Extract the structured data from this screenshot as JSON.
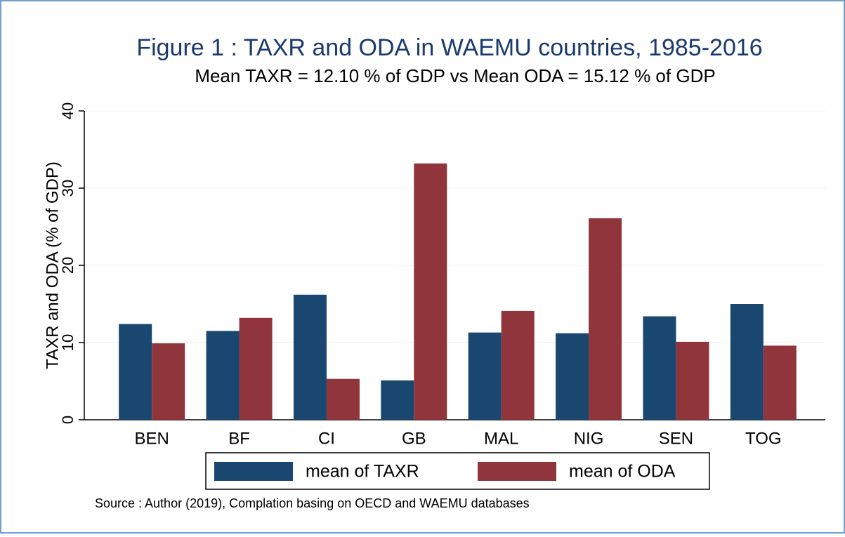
{
  "chart_data": {
    "type": "bar",
    "title": "Figure 1 : TAXR and ODA in WAEMU countries, 1985-2016",
    "subtitle": "Mean TAXR = 12.10 % of GDP vs Mean ODA = 15.12 % of GDP",
    "y_label": "TAXR and ODA (% of GDP)",
    "categories": [
      "BEN",
      "BF",
      "CI",
      "GB",
      "MAL",
      "NIG",
      "SEN",
      "TOG"
    ],
    "series": [
      {
        "name": "mean of TAXR",
        "color": "#1a476f",
        "values": [
          12.4,
          11.5,
          16.2,
          5.1,
          11.3,
          11.2,
          13.4,
          15.0
        ]
      },
      {
        "name": "mean of ODA",
        "color": "#90353b",
        "values": [
          9.9,
          13.2,
          5.3,
          33.2,
          14.1,
          26.1,
          10.1,
          9.6
        ]
      }
    ],
    "ylim": [
      0,
      40
    ],
    "yticks": [
      0,
      10,
      20,
      30,
      40
    ],
    "grid": true,
    "source": "Source : Author (2019), Complation basing on OECD and WAEMU databases"
  }
}
